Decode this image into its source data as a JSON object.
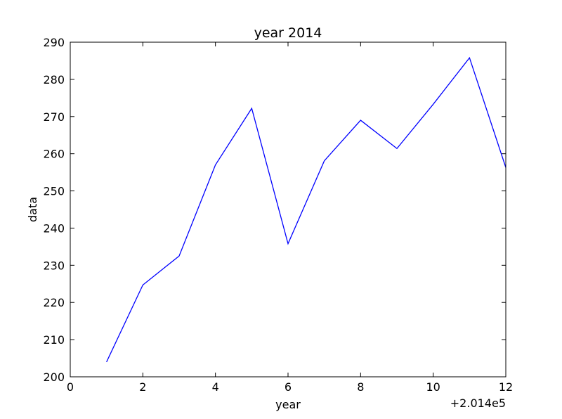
{
  "chart_data": {
    "type": "line",
    "title": "year 2014",
    "xlabel": "year",
    "ylabel": "data",
    "x_offset_label": "+2.014e5",
    "xlim": [
      0,
      12
    ],
    "ylim": [
      200,
      290
    ],
    "xticks": [
      "0",
      "2",
      "4",
      "6",
      "8",
      "10",
      "12"
    ],
    "yticks": [
      "200",
      "210",
      "220",
      "230",
      "240",
      "250",
      "260",
      "270",
      "280",
      "290"
    ],
    "grid": false,
    "series": [
      {
        "color": "#0000ff",
        "x": [
          1,
          2,
          3,
          4,
          5,
          6,
          7,
          8,
          9,
          10,
          11,
          12
        ],
        "values": [
          204.0,
          224.7,
          232.5,
          257.0,
          272.2,
          235.8,
          258.1,
          269.0,
          261.4,
          273.3,
          285.8,
          256.3
        ]
      }
    ]
  }
}
